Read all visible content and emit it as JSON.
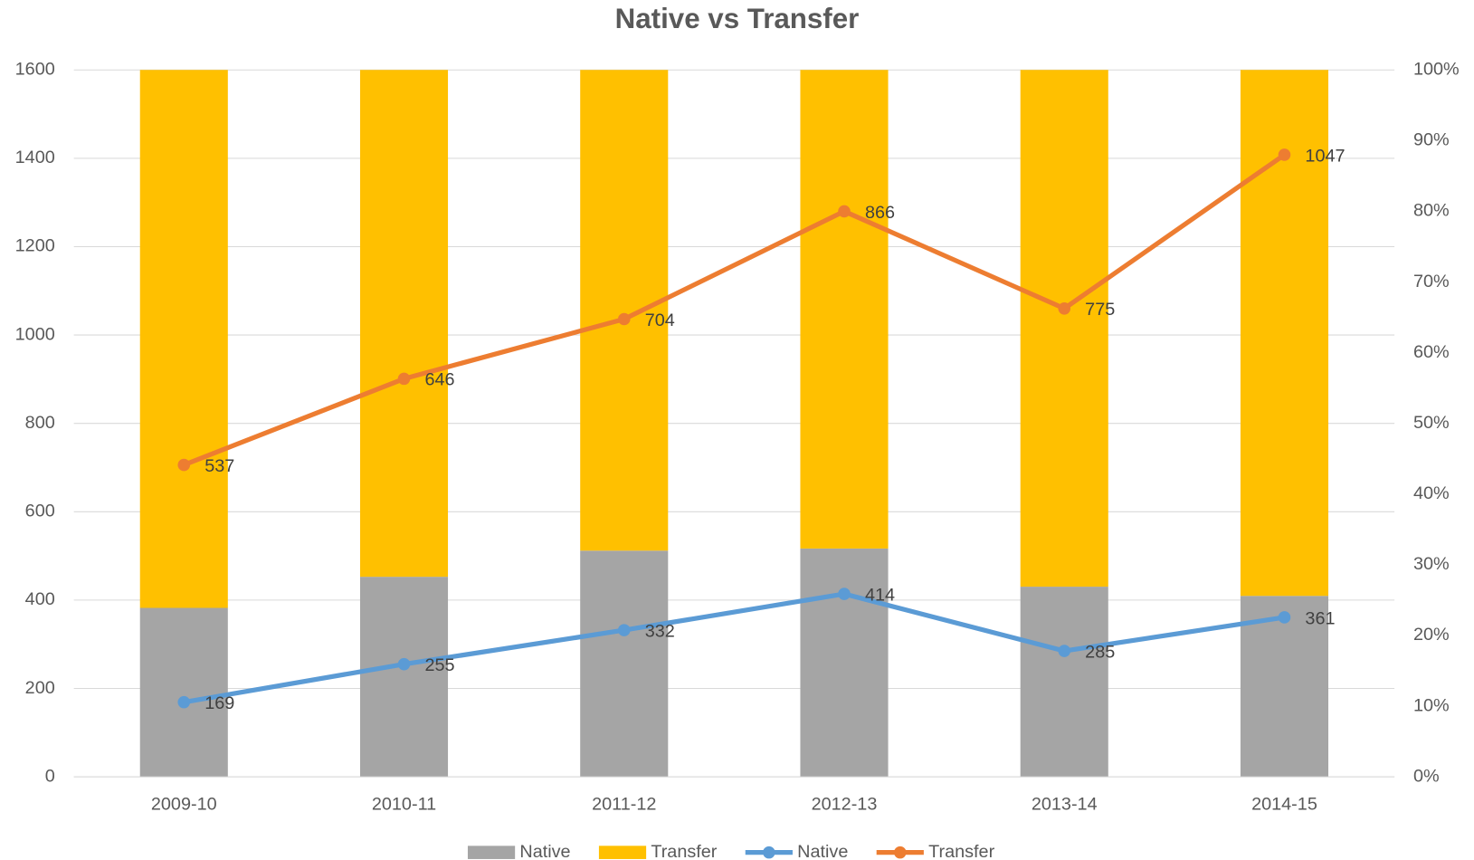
{
  "chart_data": {
    "type": "combo",
    "title": "Native vs Transfer",
    "categories": [
      "2009-10",
      "2010-11",
      "2011-12",
      "2012-13",
      "2013-14",
      "2014-15"
    ],
    "series": [
      {
        "name": "Native",
        "kind": "bar",
        "axis": "y2",
        "color": "#a5a5a5",
        "values": [
          23.9,
          28.3,
          32.0,
          32.3,
          26.9,
          25.6
        ]
      },
      {
        "name": "Transfer",
        "kind": "bar",
        "axis": "y2",
        "color": "#ffc000",
        "values": [
          76.1,
          71.7,
          68.0,
          67.7,
          73.1,
          74.4
        ]
      },
      {
        "name": "Native",
        "kind": "line",
        "color": "#5b9bd5",
        "values": [
          169,
          255,
          332,
          414,
          285,
          361
        ]
      },
      {
        "name": "Transfer",
        "kind": "line",
        "color": "#ed7d31",
        "values": [
          537,
          646,
          704,
          866,
          775,
          1047
        ]
      }
    ],
    "stacked": true,
    "ylim": [
      0,
      1600
    ],
    "yticks": [
      0,
      200,
      400,
      600,
      800,
      1000,
      1200,
      1400,
      1600
    ],
    "y2lim": [
      0,
      100
    ],
    "y2ticks": [
      {
        "value": 0,
        "label": "0%"
      },
      {
        "value": 10,
        "label": "10%"
      },
      {
        "value": 20,
        "label": "20%"
      },
      {
        "value": 30,
        "label": "30%"
      },
      {
        "value": 40,
        "label": "40%"
      },
      {
        "value": 50,
        "label": "50%"
      },
      {
        "value": 60,
        "label": "60%"
      },
      {
        "value": 70,
        "label": "70%"
      },
      {
        "value": 80,
        "label": "80%"
      },
      {
        "value": 90,
        "label": "90%"
      },
      {
        "value": 100,
        "label": "100%"
      }
    ],
    "grid": true,
    "legend": "bottom",
    "data_labels": true
  }
}
